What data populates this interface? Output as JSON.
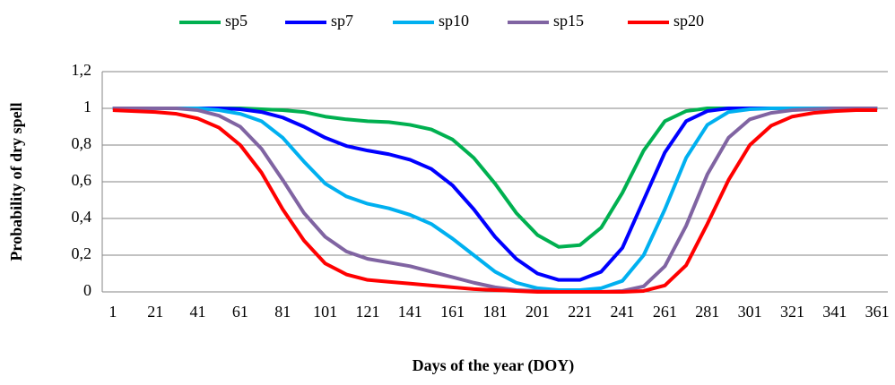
{
  "chart_data": {
    "type": "line",
    "x_label": "Days of the year (DOY)",
    "y_label": "Probability of dry spell",
    "categories": [
      "1",
      null,
      "21",
      null,
      "41",
      null,
      "61",
      null,
      "81",
      null,
      "101",
      null,
      "121",
      null,
      "141",
      null,
      "161",
      null,
      "181",
      null,
      "201",
      null,
      "221",
      null,
      "241",
      null,
      "261",
      null,
      "281",
      null,
      "301",
      null,
      "321",
      null,
      "341",
      null,
      "361"
    ],
    "series": [
      {
        "name": "sp5",
        "color": "#00b050",
        "values": [
          1,
          1,
          1,
          1,
          1,
          1,
          1,
          0.995,
          0.99,
          0.98,
          0.955,
          0.94,
          0.93,
          0.925,
          0.91,
          0.885,
          0.83,
          0.73,
          0.59,
          0.43,
          0.31,
          0.245,
          0.255,
          0.35,
          0.54,
          0.77,
          0.93,
          0.985,
          1,
          1,
          1,
          1,
          1,
          1,
          1,
          1,
          1
        ]
      },
      {
        "name": "sp7",
        "color": "#0000ff",
        "values": [
          1,
          1,
          1,
          1,
          1,
          1,
          0.995,
          0.98,
          0.95,
          0.9,
          0.84,
          0.795,
          0.77,
          0.75,
          0.72,
          0.67,
          0.58,
          0.45,
          0.3,
          0.18,
          0.1,
          0.065,
          0.065,
          0.11,
          0.24,
          0.5,
          0.76,
          0.93,
          0.985,
          1,
          1,
          1,
          1,
          1,
          1,
          1,
          1
        ]
      },
      {
        "name": "sp10",
        "color": "#00b0f0",
        "values": [
          1,
          1,
          1,
          1,
          1,
          0.99,
          0.97,
          0.93,
          0.84,
          0.71,
          0.59,
          0.52,
          0.48,
          0.455,
          0.42,
          0.37,
          0.29,
          0.2,
          0.11,
          0.05,
          0.02,
          0.01,
          0.01,
          0.02,
          0.06,
          0.2,
          0.45,
          0.73,
          0.91,
          0.98,
          0.995,
          1,
          1,
          1,
          1,
          1,
          1
        ]
      },
      {
        "name": "sp15",
        "color": "#8064a2",
        "values": [
          1,
          1,
          1,
          1,
          0.99,
          0.96,
          0.9,
          0.78,
          0.61,
          0.43,
          0.3,
          0.22,
          0.18,
          0.16,
          0.14,
          0.11,
          0.08,
          0.05,
          0.025,
          0.01,
          0.005,
          0,
          0,
          0,
          0.005,
          0.03,
          0.14,
          0.36,
          0.64,
          0.84,
          0.94,
          0.975,
          0.99,
          0.995,
          1,
          1,
          1
        ]
      },
      {
        "name": "sp20",
        "color": "#ff0000",
        "values": [
          0.99,
          0.985,
          0.98,
          0.97,
          0.945,
          0.895,
          0.8,
          0.65,
          0.45,
          0.28,
          0.155,
          0.095,
          0.065,
          0.055,
          0.045,
          0.035,
          0.025,
          0.015,
          0.01,
          0.005,
          0,
          0,
          0,
          0,
          0,
          0.005,
          0.035,
          0.145,
          0.37,
          0.61,
          0.8,
          0.905,
          0.955,
          0.975,
          0.985,
          0.99,
          0.99
        ]
      }
    ],
    "ylim": [
      0,
      1.2
    ],
    "yticks": [
      0,
      {
        "value": 0.2,
        "label": "0,2"
      },
      {
        "value": 0.4,
        "label": "0,4"
      },
      {
        "value": 0.6,
        "label": "0,6"
      },
      {
        "value": 0.8,
        "label": "0,8"
      },
      1,
      {
        "value": 1.2,
        "label": "1,2"
      }
    ],
    "grid": true,
    "legend": "top"
  }
}
